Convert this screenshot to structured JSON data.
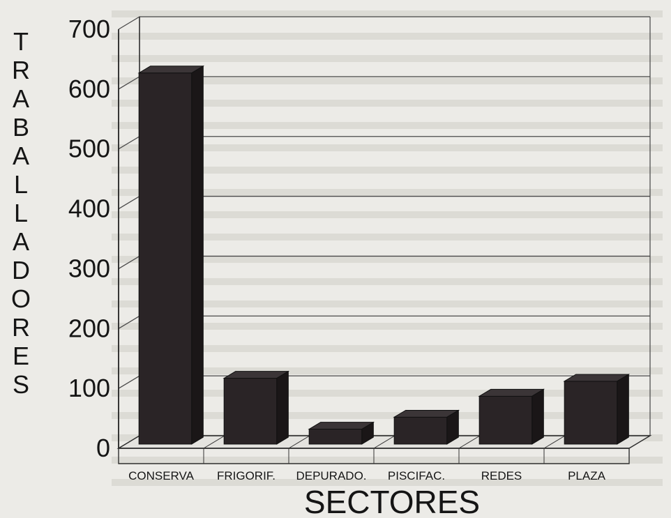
{
  "chart_data": {
    "type": "bar",
    "categories": [
      "CONSERVA",
      "FRIGORIF.",
      "DEPURADO.",
      "PISCIFAC.",
      "REDES",
      "PLAZA"
    ],
    "values": [
      620,
      110,
      25,
      45,
      80,
      105
    ],
    "title": "",
    "xlabel": "SECTORES",
    "ylabel": "TRABALLADORES",
    "ylim": [
      0,
      700
    ],
    "yticks": [
      "0",
      "100",
      "200",
      "300",
      "400",
      "500",
      "600",
      "700"
    ],
    "grid": true,
    "legend": "none",
    "bar_color": "#2a2426",
    "style": "3d"
  }
}
